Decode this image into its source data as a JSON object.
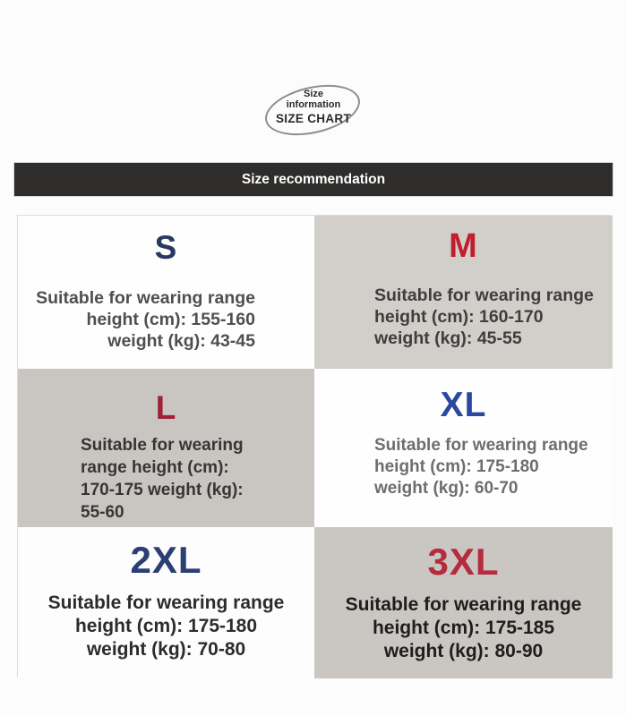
{
  "stamp": {
    "line1": "Size",
    "line2": "information",
    "line3": "SIZE CHART",
    "outline_color": "#8d8d8d",
    "text_color": "#2a2a2a"
  },
  "banner": {
    "label": "Size recommendation",
    "background": "#2e2d2b",
    "text_color": "#ffffff"
  },
  "size_grid": {
    "cells": [
      {
        "size": "S",
        "size_color": "#27395e",
        "bg": "#fefefe",
        "text_color": "#4f4f4f",
        "lines": [
          "Suitable for wearing range",
          "height (cm): 155-160",
          "weight (kg): 43-45"
        ]
      },
      {
        "size": "M",
        "size_color": "#bf1f2e",
        "bg": "#d2cfcb",
        "text_color": "#3e3e3e",
        "lines": [
          "Suitable for wearing range",
          "height (cm): 160-170",
          "weight (kg): 45-55"
        ]
      },
      {
        "size": "L",
        "size_color": "#a02038",
        "bg": "#c9c6c2",
        "text_color": "#363636",
        "lines": [
          "Suitable for wearing",
          "range height (cm):",
          "170-175 weight (kg):",
          "55-60"
        ]
      },
      {
        "size": "XL",
        "size_color": "#2b48a0",
        "bg": "#fefefe",
        "text_color": "#6e6e6e",
        "lines": [
          "Suitable for wearing range",
          "height (cm): 175-180",
          "weight (kg): 60-70"
        ]
      },
      {
        "size": "2XL",
        "size_color": "#2c3f74",
        "bg": "#fdfdfd",
        "text_color": "#2c2c2c",
        "lines": [
          "Suitable for wearing range",
          "height (cm): 175-180",
          "weight (kg): 70-80"
        ]
      },
      {
        "size": "3XL",
        "size_color": "#b42c3e",
        "bg": "#cac6c2",
        "text_color": "#1e1e1e",
        "lines": [
          "Suitable for wearing range",
          "height (cm): 175-185",
          "weight (kg): 80-90"
        ]
      }
    ]
  }
}
